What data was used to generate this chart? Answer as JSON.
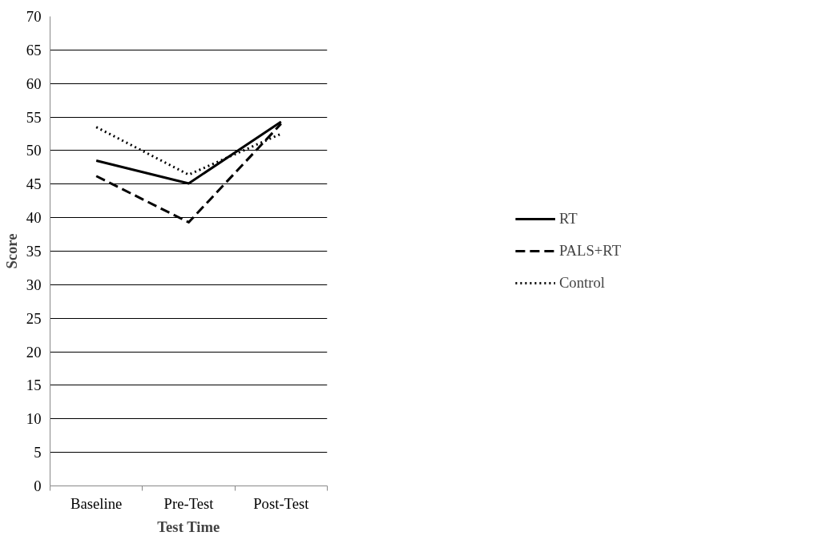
{
  "chart_data": {
    "type": "line",
    "xlabel": "Test Time",
    "ylabel": "Score",
    "categories": [
      "Baseline",
      "Pre-Test",
      "Post-Test"
    ],
    "series": [
      {
        "name": "RT",
        "color": "#000000",
        "values": [
          48.5,
          45.1,
          54.3
        ],
        "line_style": "solid"
      },
      {
        "name": "PALS+RT",
        "color": "#000000",
        "values": [
          46.2,
          39.3,
          54.0
        ],
        "line_style": "dashed"
      },
      {
        "name": "Control",
        "color": "#000000",
        "values": [
          53.5,
          46.4,
          52.5
        ],
        "line_style": "dotted"
      }
    ],
    "ylim": [
      0,
      70
    ],
    "yticks": [
      0,
      5,
      10,
      15,
      20,
      25,
      30,
      35,
      40,
      45,
      50,
      55,
      60,
      65,
      70
    ],
    "grid": "y",
    "legend": "right",
    "marker": "none"
  }
}
